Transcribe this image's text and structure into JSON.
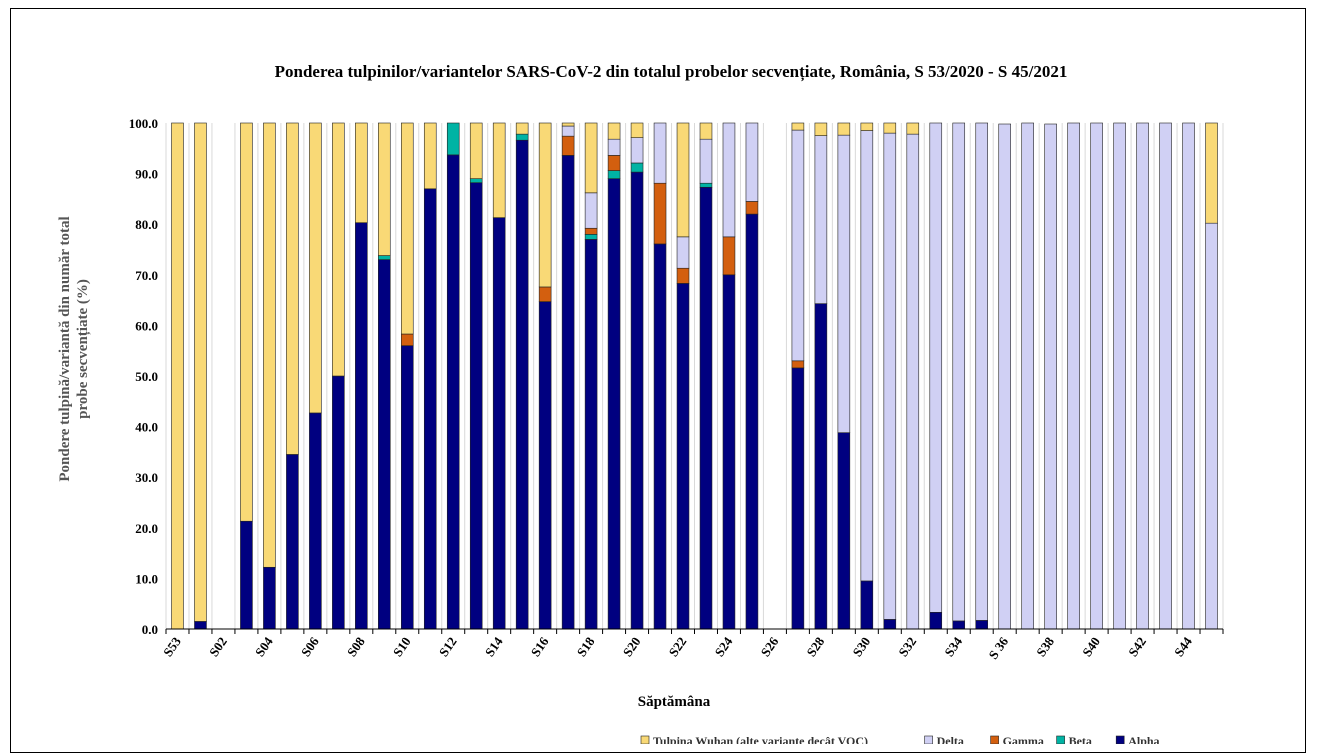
{
  "chart_data": {
    "type": "bar",
    "stacked": true,
    "title": "Ponderea tulpinilor/variantelor SARS-CoV-2 din totalul probelor secvențiate, România, S 53/2020 - S 45/2021",
    "xlabel": "Săptămâna",
    "ylabel_lines": [
      "Pondere tulpină/variantă din număr total",
      "probe secvențiate (%)"
    ],
    "ylim": [
      0,
      100
    ],
    "yticks": [
      "0.0",
      "10.0",
      "20.0",
      "30.0",
      "40.0",
      "50.0",
      "60.0",
      "70.0",
      "80.0",
      "90.0",
      "100.0"
    ],
    "grid": true,
    "legend_position": "bottom",
    "categories": [
      "S53",
      "S01",
      "S02",
      "S03",
      "S04",
      "S05",
      "S06",
      "S07",
      "S08",
      "S09",
      "S10",
      "S11",
      "S12",
      "S13",
      "S14",
      "S15",
      "S16",
      "S17",
      "S18",
      "S19",
      "S20",
      "S21",
      "S22",
      "S23",
      "S24",
      "S25",
      "S26",
      "S27",
      "S28",
      "S29",
      "S30",
      "S31",
      "S32",
      "S33",
      "S34",
      "S35",
      "S 36",
      "S37",
      "S38",
      "S39",
      "S40",
      "S41",
      "S42",
      "S43",
      "S44",
      "S45"
    ],
    "tick_labels": [
      "S53",
      "",
      "S02",
      "",
      "S04",
      "",
      "S06",
      "",
      "S08",
      "",
      "S10",
      "",
      "S12",
      "",
      "S14",
      "",
      "S16",
      "",
      "S18",
      "",
      "S20",
      "",
      "S22",
      "",
      "S24",
      "",
      "S26",
      "",
      "S28",
      "",
      "S30",
      "",
      "S32",
      "",
      "S34",
      "",
      "S 36",
      "",
      "S38",
      "",
      "S40",
      "",
      "S42",
      "",
      "S44",
      ""
    ],
    "series": [
      {
        "name": "Alpha",
        "color": "#000080",
        "values": [
          0,
          1.5,
          0,
          21.3,
          12.2,
          34.5,
          42.7,
          50,
          80.3,
          73,
          56,
          87,
          93.7,
          88.2,
          81.3,
          96.6,
          64.7,
          93.6,
          77,
          89,
          90.3,
          76.1,
          68.3,
          87.3,
          70,
          82,
          0,
          51.6,
          64.3,
          38.8,
          9.5,
          1.9,
          0,
          3.3,
          1.6,
          1.7,
          0,
          0,
          0,
          0,
          0,
          0,
          0,
          0,
          0,
          0
        ]
      },
      {
        "name": "Beta",
        "color": "#00b3a4",
        "values": [
          0,
          0,
          0,
          0,
          0,
          0,
          0,
          0,
          0,
          0.8,
          0,
          0,
          6.3,
          0.8,
          0,
          1.2,
          0,
          0,
          1,
          1.6,
          1.8,
          0,
          0,
          0.8,
          0,
          0,
          0,
          0,
          0,
          0,
          0,
          0,
          0,
          0,
          0,
          0,
          0,
          0,
          0,
          0,
          0,
          0,
          0,
          0,
          0,
          0
        ]
      },
      {
        "name": "Gamma",
        "color": "#d35f0f",
        "values": [
          0,
          0,
          0,
          0,
          0,
          0,
          0,
          0,
          0,
          0,
          2.3,
          0,
          0,
          0,
          0,
          0,
          2.9,
          3.8,
          1.2,
          3,
          0,
          12,
          3,
          0,
          7.5,
          2.5,
          0,
          1.4,
          0,
          0,
          0,
          0,
          0,
          0,
          0,
          0,
          0,
          0,
          0,
          0,
          0,
          0,
          0,
          0,
          0,
          0
        ]
      },
      {
        "name": "Delta",
        "color": "#d0d0f4",
        "values": [
          0,
          0,
          0,
          0,
          0,
          0,
          0,
          0,
          0,
          0,
          0,
          0,
          0,
          0,
          0,
          0,
          0,
          2,
          7,
          3.2,
          5,
          11.9,
          6.2,
          8.7,
          22.5,
          15.5,
          0,
          45.6,
          33.2,
          58.8,
          89,
          96.1,
          97.8,
          96.7,
          98.4,
          98.3,
          99.8,
          100,
          99.8,
          100,
          100,
          100,
          100,
          100,
          100,
          80.2
        ]
      },
      {
        "name": "Tulpina Wuhan (alte variante decât VOC)",
        "color": "#f9d976",
        "values": [
          100,
          98.5,
          0,
          78.7,
          87.8,
          65.5,
          57.3,
          50,
          19.7,
          26.2,
          41.7,
          13,
          0,
          11,
          18.7,
          2.2,
          32.4,
          0.6,
          13.8,
          3.2,
          2.9,
          0,
          22.5,
          3.2,
          0,
          0,
          0,
          1.4,
          2.5,
          2.4,
          1.5,
          2,
          2.2,
          0,
          0,
          0,
          0,
          0,
          0,
          0,
          0,
          0,
          0,
          0,
          0,
          19.8
        ]
      }
    ],
    "legend_visible": [
      "Tulpina Wuhan (alte variante decât VOC)",
      "Delta",
      "Gamma",
      "Beta",
      "Alpha"
    ]
  }
}
